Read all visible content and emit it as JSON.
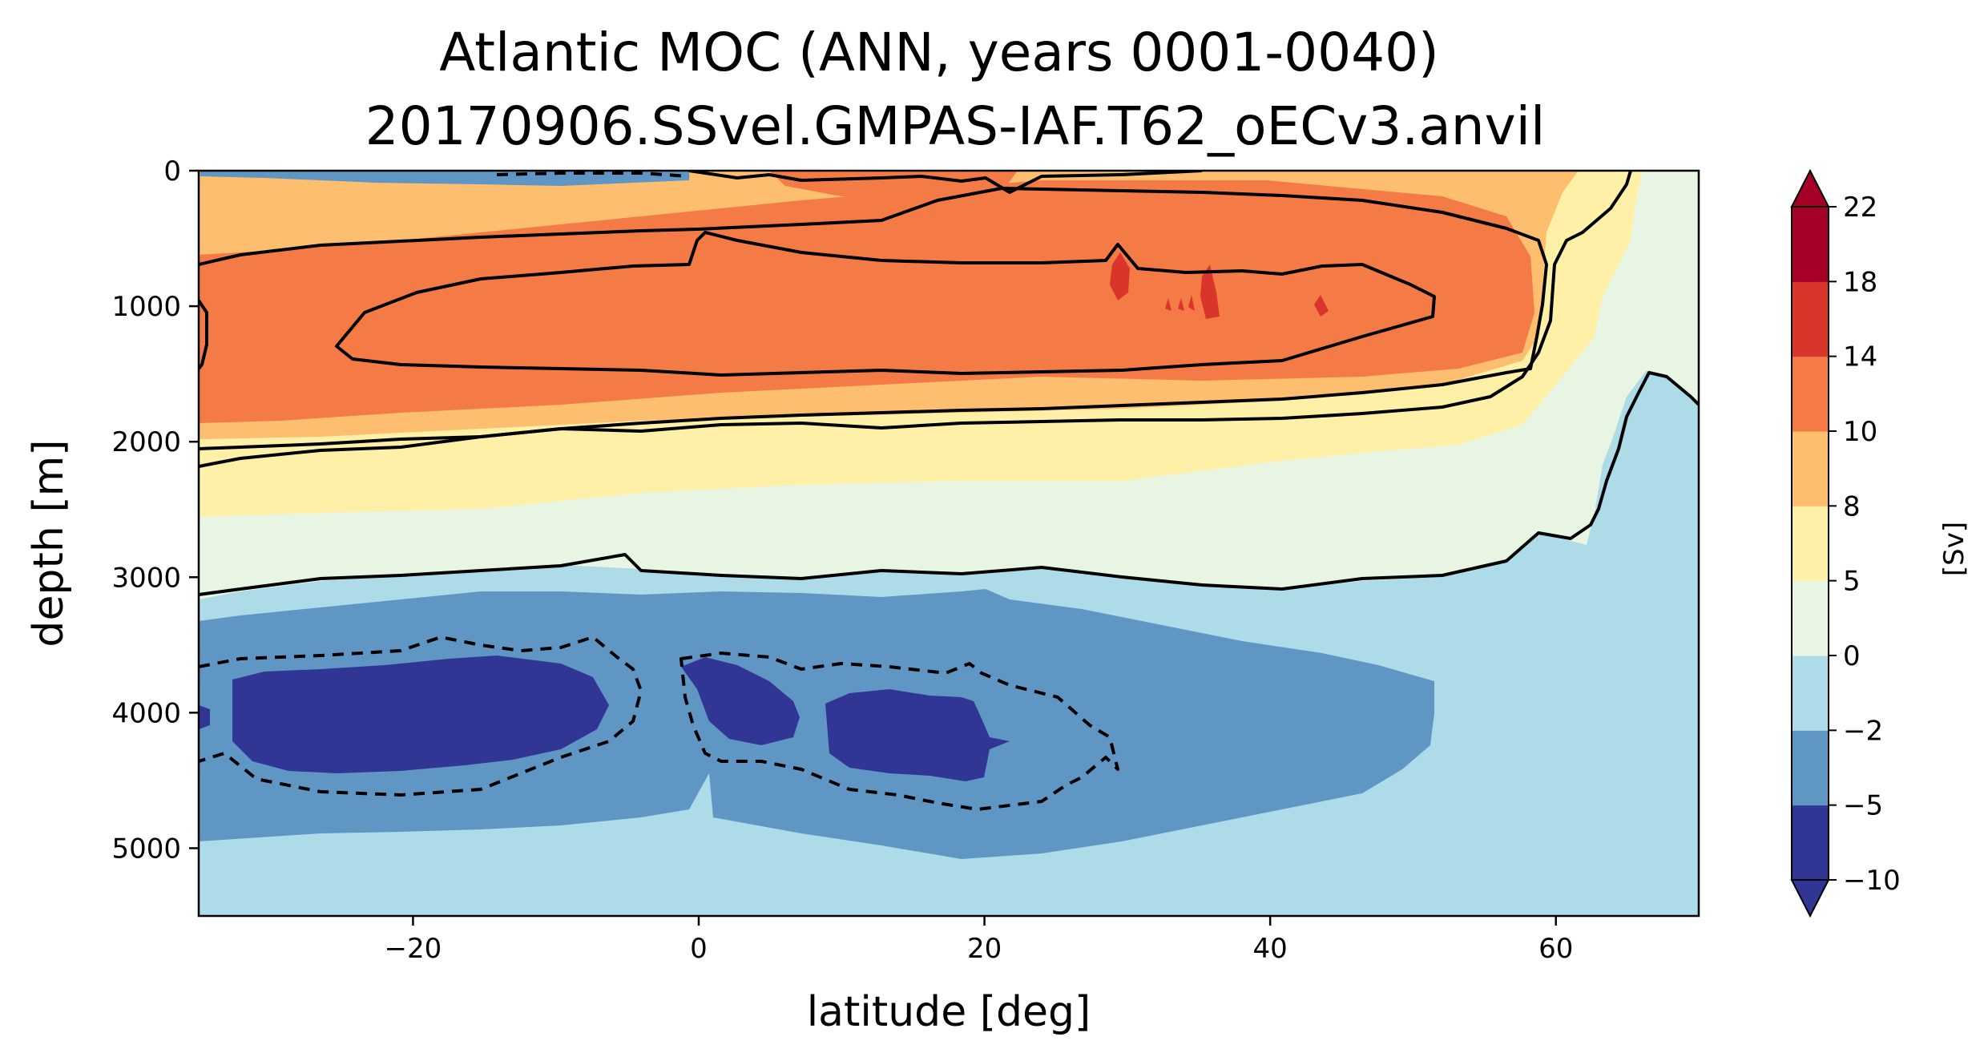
{
  "chart_data": {
    "type": "heatmap",
    "title": "Atlantic MOC (ANN, years 0001-0040)",
    "subtitle": "20170906.SSvel.GMPAS-IAF.T62_oECv3.anvil",
    "xlabel": "latitude [deg]",
    "ylabel": "depth [m]",
    "xlim": [
      -35,
      70
    ],
    "ylim": [
      5500,
      0
    ],
    "x_ticks": [
      -20,
      0,
      20,
      40,
      60
    ],
    "x_tick_labels": [
      "−20",
      "0",
      "20",
      "40",
      "60"
    ],
    "y_ticks": [
      0,
      1000,
      2000,
      3000,
      4000,
      5000
    ],
    "y_tick_labels": [
      "0",
      "1000",
      "2000",
      "3000",
      "4000",
      "5000"
    ],
    "y_inverted": true,
    "grid": false,
    "colorbar": {
      "label": "[Sv]",
      "levels": [
        -10,
        -5,
        -2,
        0,
        5,
        8,
        10,
        14,
        18,
        22
      ],
      "tick_labels": [
        "−10",
        "−5",
        "−2",
        "0",
        "5",
        "8",
        "10",
        "14",
        "18",
        "22"
      ],
      "colors": [
        "#313695",
        "#6096c4",
        "#aedbe8",
        "#e8f5e3",
        "#fff0a8",
        "#fdbe6f",
        "#f47a46",
        "#d9352a",
        "#a50026"
      ],
      "extend": "both",
      "under_color": "#313695",
      "over_color": "#a50026"
    },
    "contour_lines": {
      "levels": [
        -4,
        0,
        4,
        8,
        12
      ],
      "negative_style": "dashed",
      "positive_style": "solid",
      "color": "#000000"
    },
    "features": [
      {
        "name": "upper overturning cell maximum",
        "value_range": "10-14 Sv",
        "lat_range": [
          -35,
          60
        ],
        "depth_range": [
          400,
          1700
        ]
      },
      {
        "name": "peak cores",
        "value_range": "14-18 Sv",
        "lat": [
          29,
          36,
          44
        ],
        "depth": 900
      },
      {
        "name": "abyssal cell minimum",
        "value_range": "below -5 Sv",
        "lat_range": [
          -33,
          24
        ],
        "depth_range": [
          3600,
          4600
        ]
      }
    ]
  }
}
